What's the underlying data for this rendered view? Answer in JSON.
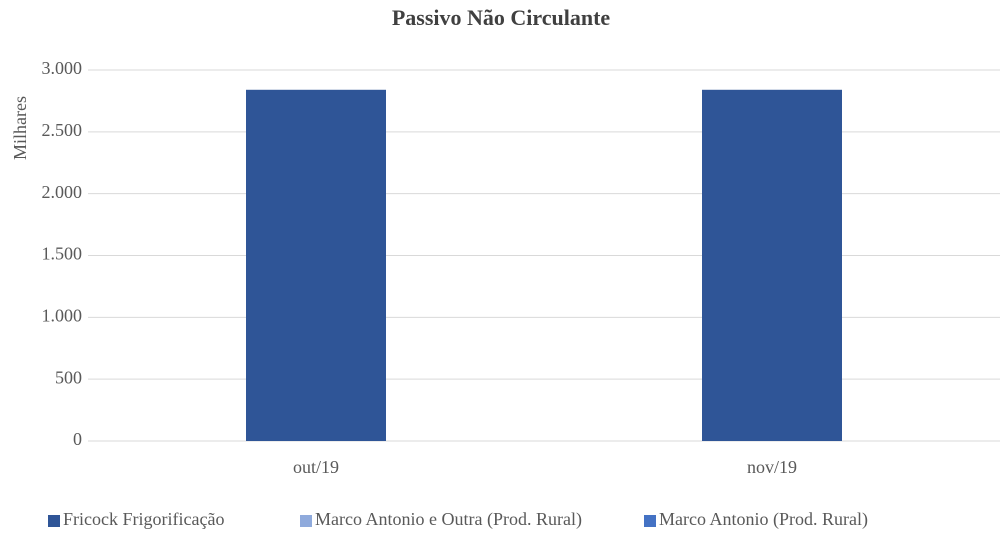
{
  "chart_data": {
    "type": "stacked_bar",
    "title": "Passivo Não Circulante",
    "y_label": "Milhares",
    "categories": [
      "out/19",
      "nov/19"
    ],
    "series": [
      {
        "name": "Fricock Frigorificação",
        "color": "#2f5597",
        "values": [
          2840,
          2840
        ]
      },
      {
        "name": "Marco Antonio e Outra (Prod. Rural)",
        "color": "#8faadc",
        "values": [
          0,
          0
        ]
      },
      {
        "name": "Marco Antonio (Prod. Rural)",
        "color": "#4472c4",
        "values": [
          0,
          0
        ]
      }
    ],
    "ylim": [
      0,
      3000
    ],
    "yticks": [
      0,
      500,
      {
        "value": 1000,
        "label": "1.000"
      },
      {
        "value": 1500,
        "label": "1.500"
      },
      {
        "value": 2000,
        "label": "2.000"
      },
      {
        "value": 2500,
        "label": "2.500"
      },
      {
        "value": 3000,
        "label": "3.000"
      }
    ],
    "grid": true,
    "legend": "bottom"
  }
}
